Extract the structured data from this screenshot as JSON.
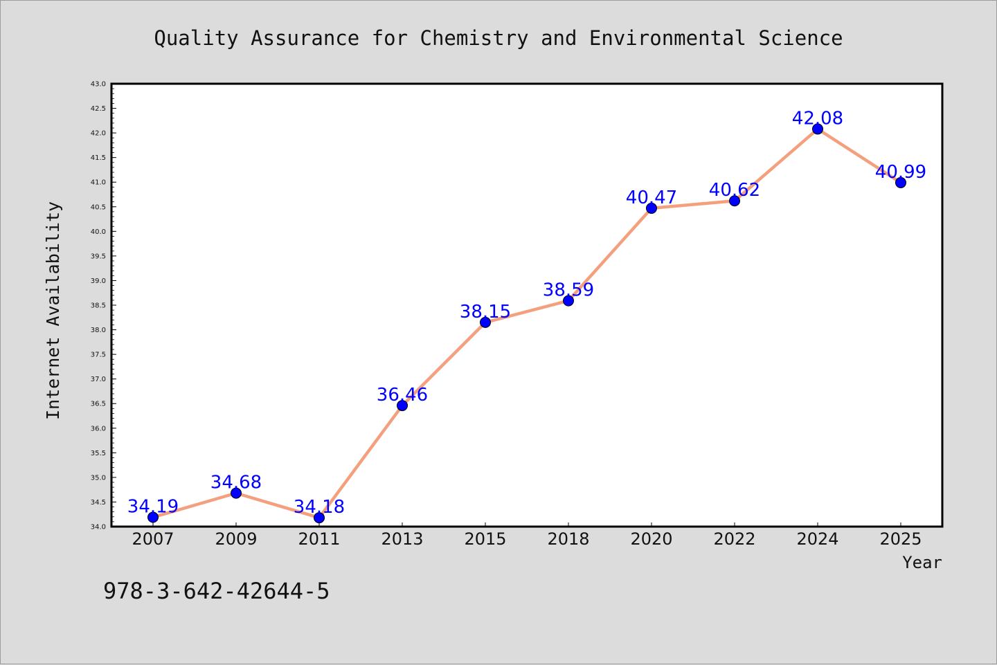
{
  "chart_data": {
    "type": "line",
    "title": "Quality Assurance for Chemistry and Environmental Science",
    "xlabel": "Year",
    "ylabel": "Internet Availability",
    "categories": [
      "2007",
      "2009",
      "2011",
      "2013",
      "2015",
      "2018",
      "2020",
      "2022",
      "2024",
      "2025"
    ],
    "series": [
      {
        "values": [
          34.19,
          34.68,
          34.18,
          36.46,
          38.15,
          38.59,
          40.47,
          40.62,
          42.08,
          40.99
        ],
        "data_labels": [
          "34.19",
          "34.68",
          "34.18",
          "36.46",
          "38.15",
          "38.59",
          "40.47",
          "40.62",
          "42.08",
          "40.99"
        ],
        "line_color": "#f4a07e",
        "marker_color": "#0000ff"
      }
    ],
    "ylim": [
      34.0,
      43.0
    ],
    "yticks": [
      "34.0",
      "34.5",
      "35.0",
      "35.5",
      "36.0",
      "36.5",
      "37.0",
      "37.5",
      "38.0",
      "38.5",
      "39.0",
      "39.5",
      "40.0",
      "40.5",
      "41.0",
      "41.5",
      "42.0",
      "42.5",
      "43.0"
    ],
    "grid": false,
    "legend": "none"
  },
  "footer": {
    "isbn": "978-3-642-42644-5"
  }
}
